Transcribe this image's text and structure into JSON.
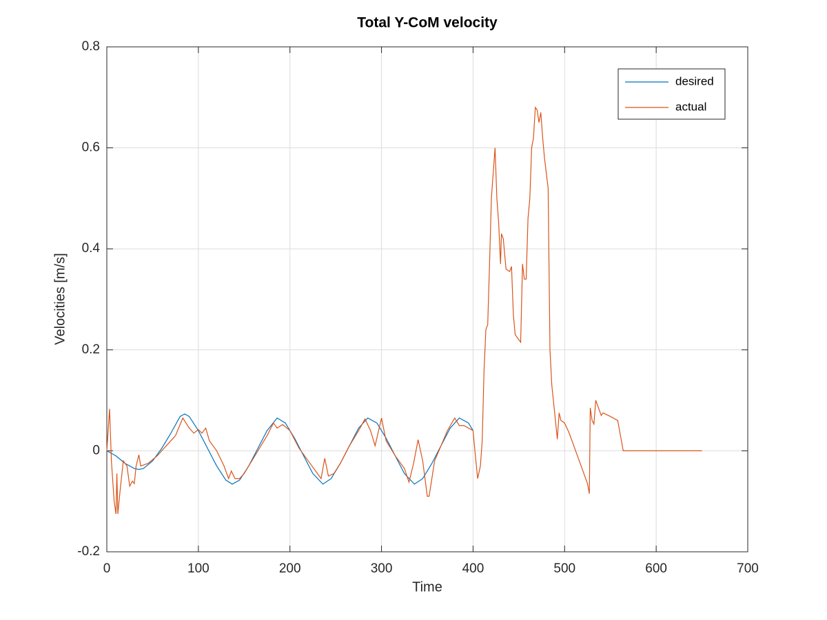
{
  "chart_data": {
    "type": "line",
    "title": "Total Y-CoM velocity",
    "x_label": "Time",
    "y_label": "Velocities [m/s]",
    "xlim": [
      0,
      700
    ],
    "xticks": [
      0,
      100,
      200,
      300,
      400,
      500,
      600,
      700
    ],
    "ylim": [
      -0.2,
      0.8
    ],
    "yticks": [
      -0.2,
      0,
      0.2,
      0.4,
      0.6,
      0.8
    ],
    "grid": true,
    "legend": "upper right",
    "series": [
      {
        "name": "desired",
        "color": "#0072bd",
        "x": [
          0,
          10,
          20,
          30,
          35,
          40,
          50,
          60,
          70,
          80,
          85,
          90,
          100,
          110,
          120,
          130,
          137,
          145,
          155,
          165,
          175,
          186,
          195,
          205,
          215,
          225,
          236,
          245,
          255,
          265,
          275,
          285,
          295,
          305,
          315,
          325,
          336,
          345,
          355,
          365,
          375,
          385,
          395,
          400
        ],
        "values": [
          0,
          -0.01,
          -0.025,
          -0.035,
          -0.037,
          -0.035,
          -0.02,
          0.005,
          0.035,
          0.068,
          0.073,
          0.068,
          0.04,
          0.005,
          -0.03,
          -0.058,
          -0.066,
          -0.058,
          -0.03,
          0.005,
          0.04,
          0.065,
          0.055,
          0.025,
          -0.01,
          -0.045,
          -0.066,
          -0.055,
          -0.025,
          0.01,
          0.045,
          0.065,
          0.055,
          0.025,
          -0.01,
          -0.045,
          -0.066,
          -0.055,
          -0.025,
          0.01,
          0.045,
          0.065,
          0.055,
          0.04
        ]
      },
      {
        "name": "actual",
        "color": "#d95319",
        "x": [
          0,
          3,
          5,
          8,
          10,
          11,
          12,
          15,
          18,
          22,
          25,
          28,
          30,
          32,
          35,
          37,
          45,
          55,
          65,
          75,
          83,
          90,
          95,
          100,
          104,
          108,
          112,
          120,
          128,
          133,
          136,
          140,
          145,
          150,
          155,
          165,
          175,
          182,
          186,
          192,
          200,
          210,
          220,
          230,
          234,
          238,
          242,
          248,
          255,
          265,
          275,
          282,
          288,
          293,
          300,
          305,
          315,
          325,
          330,
          335,
          340,
          345,
          350,
          352,
          358,
          365,
          372,
          380,
          385,
          390,
          395,
          400,
          402,
          405,
          408,
          410,
          412,
          414,
          416,
          418,
          420,
          422,
          424,
          426,
          428,
          430,
          431,
          433,
          436,
          440,
          442,
          444,
          446,
          450,
          452,
          454,
          456,
          458,
          460,
          462,
          464,
          466,
          468,
          470,
          472,
          474,
          476,
          478,
          480,
          482,
          484,
          486,
          490,
          492,
          494,
          496,
          500,
          505,
          510,
          520,
          525,
          527,
          528,
          530,
          532,
          534,
          536,
          540,
          542,
          550,
          558,
          560,
          564,
          650
        ],
        "values": [
          0,
          0.083,
          -0.02,
          -0.1,
          -0.125,
          -0.045,
          -0.125,
          -0.07,
          -0.02,
          -0.03,
          -0.07,
          -0.06,
          -0.065,
          -0.03,
          -0.008,
          -0.03,
          -0.025,
          -0.01,
          0.01,
          0.03,
          0.065,
          0.045,
          0.035,
          0.042,
          0.035,
          0.045,
          0.02,
          0,
          -0.03,
          -0.055,
          -0.04,
          -0.055,
          -0.055,
          -0.045,
          -0.03,
          0,
          0.03,
          0.055,
          0.045,
          0.052,
          0.04,
          0.005,
          -0.02,
          -0.045,
          -0.055,
          -0.015,
          -0.05,
          -0.045,
          -0.025,
          0.01,
          0.04,
          0.063,
          0.04,
          0.01,
          0.065,
          0.02,
          -0.01,
          -0.035,
          -0.062,
          -0.025,
          0.022,
          -0.02,
          -0.09,
          -0.09,
          -0.02,
          0.01,
          0.04,
          0.065,
          0.05,
          0.05,
          0.045,
          0.04,
          0,
          -0.055,
          -0.03,
          0.02,
          0.16,
          0.24,
          0.25,
          0.37,
          0.5,
          0.55,
          0.6,
          0.5,
          0.45,
          0.37,
          0.43,
          0.42,
          0.36,
          0.355,
          0.365,
          0.27,
          0.23,
          0.22,
          0.215,
          0.37,
          0.34,
          0.34,
          0.46,
          0.5,
          0.6,
          0.62,
          0.68,
          0.675,
          0.65,
          0.67,
          0.62,
          0.58,
          0.55,
          0.52,
          0.2,
          0.13,
          0.06,
          0.023,
          0.075,
          0.06,
          0.055,
          0.035,
          0.01,
          -0.04,
          -0.065,
          -0.085,
          0.085,
          0.06,
          0.053,
          0.1,
          0.09,
          0.07,
          0.075,
          0.068,
          0.06,
          0.04,
          0,
          0
        ]
      }
    ]
  }
}
